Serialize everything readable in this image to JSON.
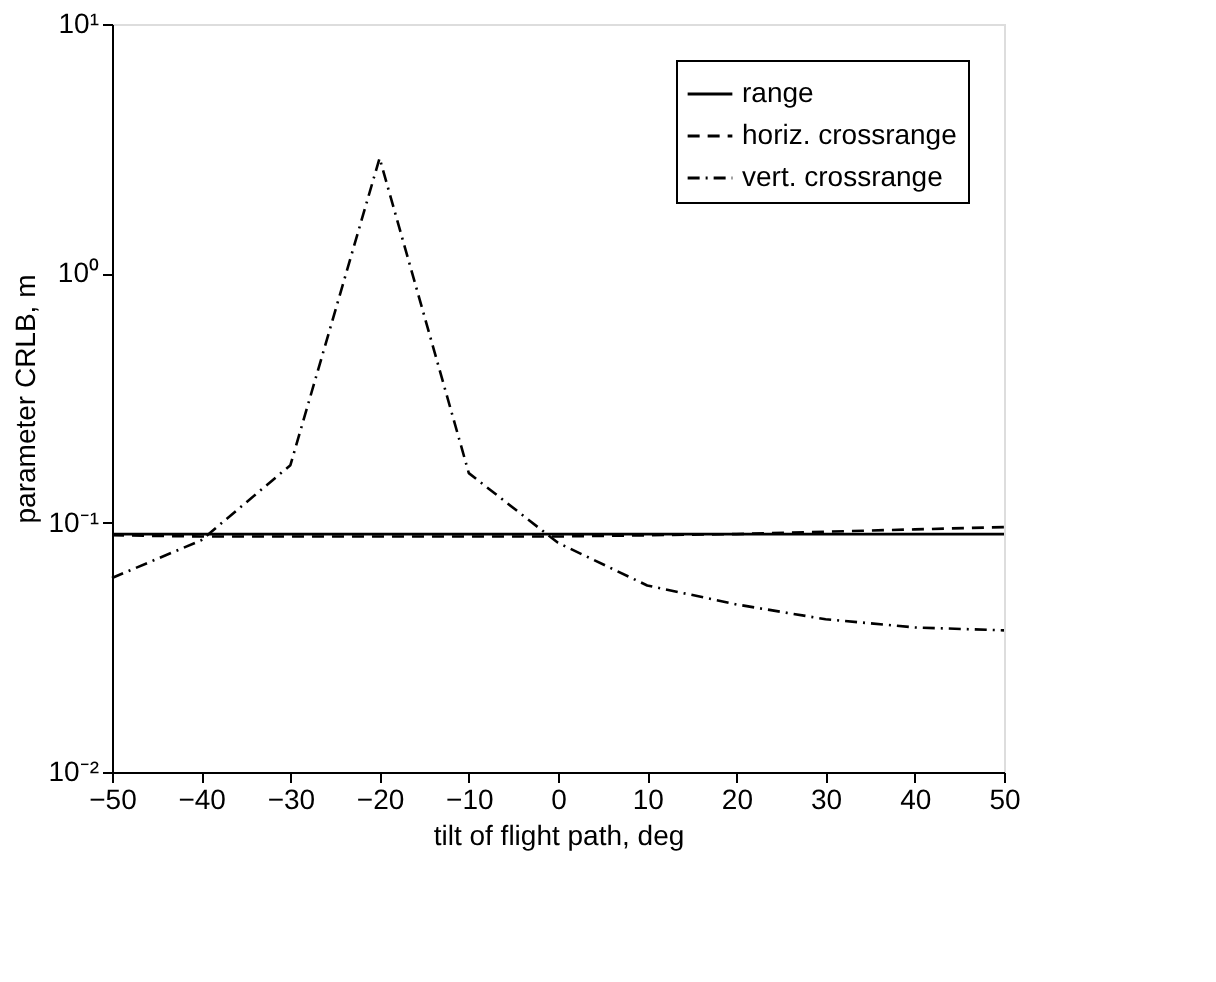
{
  "chart_data": {
    "type": "line",
    "xlabel": "tilt of flight path, deg",
    "ylabel": "parameter CRLB, m",
    "x": [
      -50,
      -40,
      -30,
      -20,
      -10,
      0,
      10,
      20,
      30,
      40,
      50
    ],
    "series": [
      {
        "name": "range",
        "color": "#000000",
        "line_style": "solid",
        "values": [
          0.09,
          0.09,
          0.09,
          0.09,
          0.09,
          0.09,
          0.09,
          0.09,
          0.09,
          0.09,
          0.09
        ]
      },
      {
        "name": "horiz. crossrange",
        "color": "#000000",
        "line_style": "dashed",
        "values": [
          0.089,
          0.088,
          0.088,
          0.088,
          0.088,
          0.088,
          0.089,
          0.09,
          0.092,
          0.094,
          0.096
        ]
      },
      {
        "name": "vert. crossrange",
        "color": "#000000",
        "line_style": "dashdot",
        "values": [
          0.06,
          0.085,
          0.17,
          2.9,
          0.158,
          0.083,
          0.056,
          0.047,
          0.041,
          0.038,
          0.037
        ]
      }
    ],
    "log": "y",
    "xlim": [
      -50,
      50
    ],
    "xticks": [
      -50,
      -40,
      -30,
      -20,
      -10,
      0,
      10,
      20,
      30,
      40,
      50
    ],
    "ylim": [
      0.01,
      10
    ],
    "yticks": [
      {
        "value": 0.01,
        "label": "10⁻²"
      },
      {
        "value": 0.1,
        "label": "10⁻¹"
      },
      {
        "value": 1,
        "label": "10⁰"
      },
      {
        "value": 10,
        "label": "10¹"
      }
    ],
    "grid": false,
    "legend": "top right",
    "marker": "none"
  }
}
